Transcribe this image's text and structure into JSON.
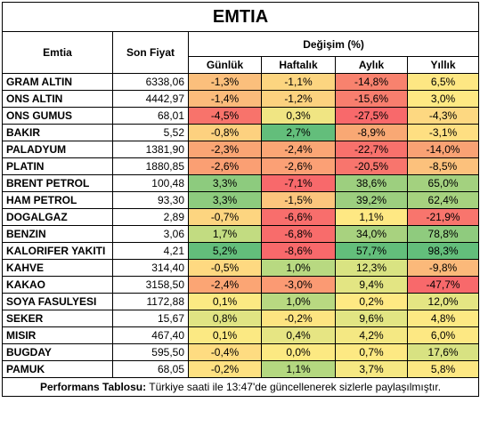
{
  "title": "EMTIA",
  "headers": {
    "emtia": "Emtia",
    "son_fiyat": "Son Fiyat",
    "degisim": "Değişim (%)",
    "gunluk": "Günlük",
    "haftalik": "Haftalık",
    "aylik": "Aylık",
    "yillik": "Yıllık"
  },
  "rows": [
    {
      "name": "GRAM ALTIN",
      "price": "6338,06",
      "gunluk": "-1,3%",
      "haftalik": "-1,1%",
      "aylik": "-14,8%",
      "yillik": "6,5%",
      "colors": [
        "#fbbf7c",
        "#fcd580",
        "#f8826e",
        "#fde783"
      ]
    },
    {
      "name": "ONS ALTIN",
      "price": "4442,97",
      "gunluk": "-1,4%",
      "haftalik": "-1,2%",
      "aylik": "-15,6%",
      "yillik": "3,0%",
      "colors": [
        "#fbbb7b",
        "#fcd27f",
        "#f87e6e",
        "#fee983"
      ]
    },
    {
      "name": "ONS GUMUS",
      "price": "68,01",
      "gunluk": "-4,5%",
      "haftalik": "0,3%",
      "aylik": "-27,5%",
      "yillik": "-4,3%",
      "colors": [
        "#f8736b",
        "#f0e583",
        "#f8696b",
        "#fdd881"
      ]
    },
    {
      "name": "BAKIR",
      "price": "5,52",
      "gunluk": "-0,8%",
      "haftalik": "2,7%",
      "aylik": "-8,9%",
      "yillik": "-3,1%",
      "colors": [
        "#fdd17f",
        "#63be7b",
        "#f9a874",
        "#fedf82"
      ]
    },
    {
      "name": "PALADYUM",
      "price": "1381,90",
      "gunluk": "-2,3%",
      "haftalik": "-2,4%",
      "aylik": "-22,7%",
      "yillik": "-14,0%",
      "colors": [
        "#faa574",
        "#fba675",
        "#f8716c",
        "#f9a274"
      ]
    },
    {
      "name": "PLATIN",
      "price": "1880,85",
      "gunluk": "-2,6%",
      "haftalik": "-2,6%",
      "aylik": "-20,5%",
      "yillik": "-8,5%",
      "colors": [
        "#fa9f73",
        "#fba075",
        "#f8756d",
        "#fcc17c"
      ]
    },
    {
      "name": "BRENT PETROL",
      "price": "100,48",
      "gunluk": "3,3%",
      "haftalik": "-7,1%",
      "aylik": "38,6%",
      "yillik": "65,0%",
      "colors": [
        "#8dcb7e",
        "#f8696b",
        "#9dcf7f",
        "#a3d17f"
      ]
    },
    {
      "name": "HAM PETROL",
      "price": "93,30",
      "gunluk": "3,3%",
      "haftalik": "-1,5%",
      "aylik": "39,2%",
      "yillik": "62,4%",
      "colors": [
        "#8dcb7e",
        "#fcc57d",
        "#9ccf7f",
        "#a6d27f"
      ]
    },
    {
      "name": "DOGALGAZ",
      "price": "2,89",
      "gunluk": "-0,7%",
      "haftalik": "-6,6%",
      "aylik": "1,1%",
      "yillik": "-21,9%",
      "colors": [
        "#fdd580",
        "#f86e6c",
        "#fee883",
        "#f8756d"
      ]
    },
    {
      "name": "BENZIN",
      "price": "3,06",
      "gunluk": "1,7%",
      "haftalik": "-6,8%",
      "aylik": "34,0%",
      "yillik": "78,8%",
      "colors": [
        "#c2dc81",
        "#f86c6b",
        "#a8d27f",
        "#8fcb7e"
      ]
    },
    {
      "name": "KALORIFER YAKITI",
      "price": "4,21",
      "gunluk": "5,2%",
      "haftalik": "-8,6%",
      "aylik": "57,7%",
      "yillik": "98,3%",
      "colors": [
        "#63be7b",
        "#f8696b",
        "#63be7b",
        "#63be7b"
      ]
    },
    {
      "name": "KAHVE",
      "price": "314,40",
      "gunluk": "-0,5%",
      "haftalik": "1,0%",
      "aylik": "12,3%",
      "yillik": "-9,8%",
      "colors": [
        "#fed981",
        "#b8d981",
        "#d9e382",
        "#fbb97a"
      ]
    },
    {
      "name": "KAKAO",
      "price": "3158,50",
      "gunluk": "-2,4%",
      "haftalik": "-3,0%",
      "aylik": "9,4%",
      "yillik": "-47,7%",
      "colors": [
        "#fba574",
        "#fb9a73",
        "#e3e583",
        "#f8696b"
      ]
    },
    {
      "name": "SOYA FASULYESI",
      "price": "1172,88",
      "gunluk": "0,1%",
      "haftalik": "1,0%",
      "aylik": "0,2%",
      "yillik": "12,0%",
      "colors": [
        "#fbe983",
        "#b8d981",
        "#fee983",
        "#e4e583"
      ]
    },
    {
      "name": "SEKER",
      "price": "15,67",
      "gunluk": "0,8%",
      "haftalik": "-0,2%",
      "aylik": "9,6%",
      "yillik": "4,8%",
      "colors": [
        "#e0e483",
        "#fde481",
        "#e2e583",
        "#fde983"
      ]
    },
    {
      "name": "MISIR",
      "price": "467,40",
      "gunluk": "0,1%",
      "haftalik": "0,4%",
      "aylik": "4,2%",
      "yillik": "6,0%",
      "colors": [
        "#fbe983",
        "#e6e583",
        "#f4e883",
        "#fde883"
      ]
    },
    {
      "name": "BUGDAY",
      "price": "595,50",
      "gunluk": "-0,4%",
      "haftalik": "0,0%",
      "aylik": "0,7%",
      "yillik": "17,6%",
      "colors": [
        "#fedc81",
        "#fce982",
        "#fde983",
        "#d8e282"
      ]
    },
    {
      "name": "PAMUK",
      "price": "68,05",
      "gunluk": "-0,2%",
      "haftalik": "1,1%",
      "aylik": "3,7%",
      "yillik": "5,8%",
      "colors": [
        "#fee182",
        "#b4d880",
        "#f6e883",
        "#fde883"
      ]
    }
  ],
  "footer": {
    "label": "Performans Tablosu:",
    "text": " Türkiye saati ile 13:47'de güncellenerek sizlerle paylaşılmıştır."
  }
}
